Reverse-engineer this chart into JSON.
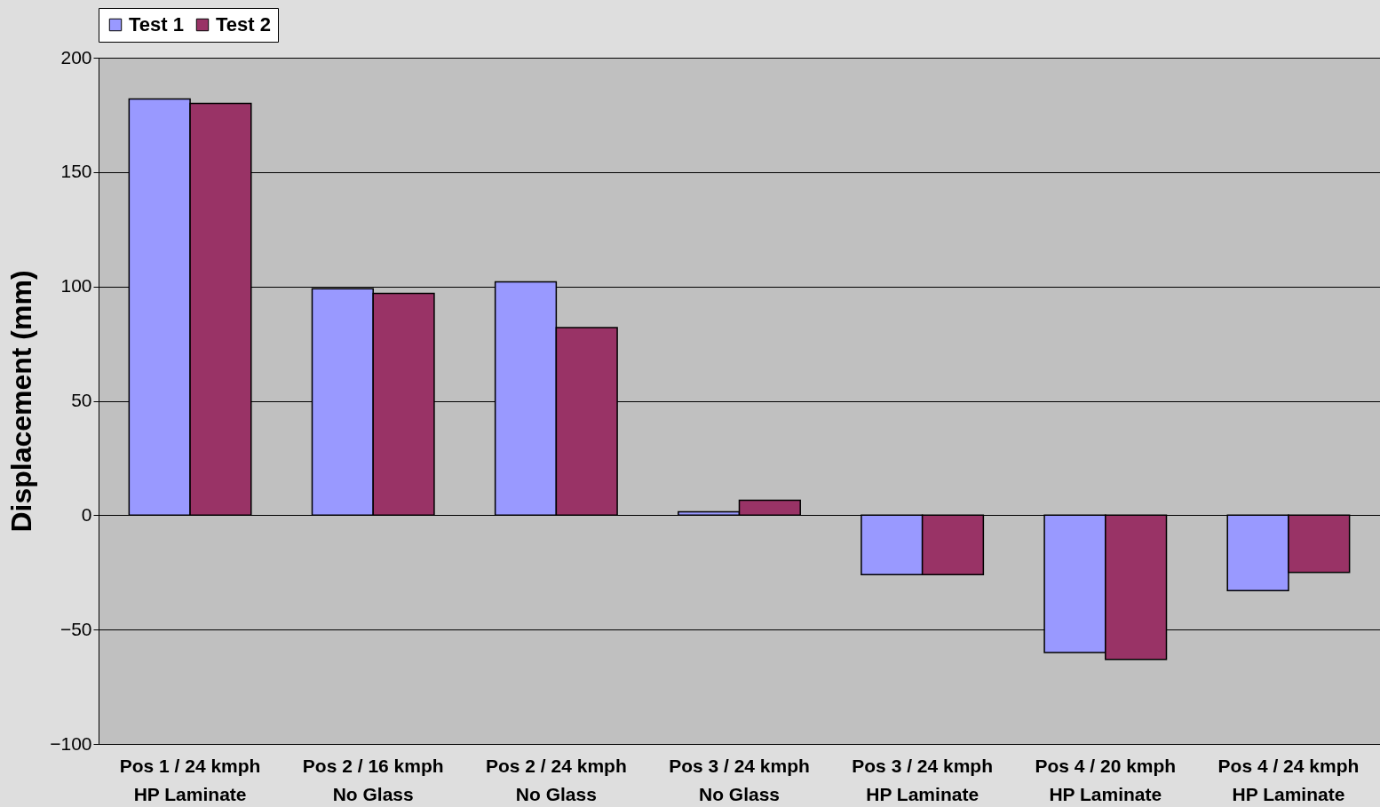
{
  "chart_data": {
    "type": "bar",
    "ylabel": "Displacement (mm)",
    "categories": [
      "Pos 1 / 24 kmph\nHP Laminate",
      "Pos 2 / 16 kmph\nNo Glass",
      "Pos 2 / 24 kmph\nNo Glass",
      "Pos 3 / 24 kmph\nNo Glass",
      "Pos 3 / 24 kmph\nHP Laminate",
      "Pos 4 / 20 kmph\nHP Laminate",
      "Pos 4 / 24 kmph\nHP Laminate"
    ],
    "series": [
      {
        "name": "Test 1",
        "color": "#9999ff",
        "values": [
          182,
          99,
          102,
          1.5,
          -26,
          -60,
          -33
        ]
      },
      {
        "name": "Test 2",
        "color": "#993366",
        "values": [
          180,
          97,
          82,
          6.5,
          -26,
          -63,
          -25
        ]
      }
    ],
    "ylim": [
      -100,
      200
    ],
    "yticks": [
      -100,
      -50,
      0,
      50,
      100,
      150,
      200
    ],
    "grid": "y",
    "legend": "top"
  }
}
